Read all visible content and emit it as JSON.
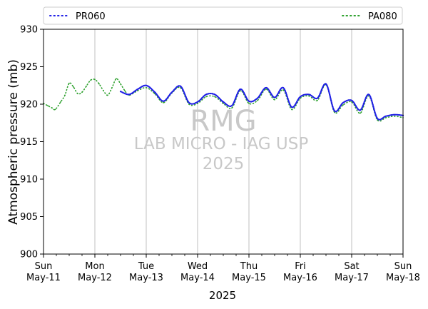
{
  "chart_data": {
    "type": "line",
    "xlabel": "2025",
    "ylabel": "Atmospheric pressure (mb)",
    "ylim": [
      900,
      930
    ],
    "yticks": [
      "900",
      "905",
      "910",
      "915",
      "920",
      "925",
      "930"
    ],
    "xlim_days": [
      "2025-05-11",
      "2025-05-18"
    ],
    "xticks": [
      {
        "day": "Sun",
        "date": "May-11"
      },
      {
        "day": "Mon",
        "date": "May-12"
      },
      {
        "day": "Tue",
        "date": "May-13"
      },
      {
        "day": "Wed",
        "date": "May-14"
      },
      {
        "day": "Thu",
        "date": "May-15"
      },
      {
        "day": "Fri",
        "date": "May-16"
      },
      {
        "day": "Sat",
        "date": "May-17"
      },
      {
        "day": "Sun",
        "date": "May-18"
      }
    ],
    "grid": "vertical-major",
    "legend": "top",
    "watermark": [
      "RMG",
      "LAB MICRO - IAG USP",
      "2025"
    ],
    "series": [
      {
        "name": "PR060",
        "color": "#1f1fe6",
        "style": "dotted",
        "points": [
          [
            "2025-05-12 12:00",
            921.7
          ],
          [
            "2025-05-12 16:00",
            921.3
          ],
          [
            "2025-05-12 20:00",
            922.0
          ],
          [
            "2025-05-13 00:00",
            922.5
          ],
          [
            "2025-05-13 04:00",
            921.6
          ],
          [
            "2025-05-13 08:00",
            920.4
          ],
          [
            "2025-05-13 12:00",
            921.6
          ],
          [
            "2025-05-13 16:00",
            922.4
          ],
          [
            "2025-05-13 20:00",
            920.2
          ],
          [
            "2025-05-14 00:00",
            920.3
          ],
          [
            "2025-05-14 04:00",
            921.3
          ],
          [
            "2025-05-14 08:00",
            921.3
          ],
          [
            "2025-05-14 12:00",
            920.3
          ],
          [
            "2025-05-14 16:00",
            919.8
          ],
          [
            "2025-05-14 20:00",
            922.0
          ],
          [
            "2025-05-15 00:00",
            920.4
          ],
          [
            "2025-05-15 04:00",
            920.8
          ],
          [
            "2025-05-15 08:00",
            922.2
          ],
          [
            "2025-05-15 12:00",
            920.9
          ],
          [
            "2025-05-15 16:00",
            922.2
          ],
          [
            "2025-05-15 20:00",
            919.6
          ],
          [
            "2025-05-16 00:00",
            921.0
          ],
          [
            "2025-05-16 04:00",
            921.3
          ],
          [
            "2025-05-16 08:00",
            920.8
          ],
          [
            "2025-05-16 12:00",
            922.7
          ],
          [
            "2025-05-16 16:00",
            919.1
          ],
          [
            "2025-05-16 20:00",
            920.2
          ],
          [
            "2025-05-17 00:00",
            920.5
          ],
          [
            "2025-05-17 04:00",
            919.2
          ],
          [
            "2025-05-17 08:00",
            921.3
          ],
          [
            "2025-05-17 12:00",
            918.1
          ],
          [
            "2025-05-17 16:00",
            918.4
          ],
          [
            "2025-05-17 20:00",
            918.6
          ],
          [
            "2025-05-18 00:00",
            918.5
          ]
        ]
      },
      {
        "name": "PA080",
        "color": "#2ca02c",
        "style": "dotted",
        "points": [
          [
            "2025-05-11 00:00",
            920.1
          ],
          [
            "2025-05-11 02:00",
            919.8
          ],
          [
            "2025-05-11 04:00",
            919.5
          ],
          [
            "2025-05-11 05:30",
            919.3
          ],
          [
            "2025-05-11 08:00",
            920.3
          ],
          [
            "2025-05-11 10:00",
            921.2
          ],
          [
            "2025-05-11 12:00",
            922.8
          ],
          [
            "2025-05-11 14:00",
            922.3
          ],
          [
            "2025-05-11 16:00",
            921.4
          ],
          [
            "2025-05-11 18:00",
            921.6
          ],
          [
            "2025-05-11 20:00",
            922.4
          ],
          [
            "2025-05-11 22:00",
            923.2
          ],
          [
            "2025-05-12 00:00",
            923.3
          ],
          [
            "2025-05-12 02:00",
            922.7
          ],
          [
            "2025-05-12 04:00",
            921.8
          ],
          [
            "2025-05-12 06:00",
            921.2
          ],
          [
            "2025-05-12 08:00",
            922.2
          ],
          [
            "2025-05-12 10:00",
            923.4
          ],
          [
            "2025-05-12 12:00",
            922.7
          ],
          [
            "2025-05-12 14:00",
            921.8
          ],
          [
            "2025-05-12 16:00",
            921.2
          ],
          [
            "2025-05-12 20:00",
            921.8
          ],
          [
            "2025-05-13 00:00",
            922.2
          ],
          [
            "2025-05-13 04:00",
            921.4
          ],
          [
            "2025-05-13 08:00",
            920.2
          ],
          [
            "2025-05-13 12:00",
            921.5
          ],
          [
            "2025-05-13 16:00",
            922.2
          ],
          [
            "2025-05-13 20:00",
            920.0
          ],
          [
            "2025-05-14 00:00",
            920.1
          ],
          [
            "2025-05-14 04:00",
            921.0
          ],
          [
            "2025-05-14 08:00",
            921.0
          ],
          [
            "2025-05-14 12:00",
            920.1
          ],
          [
            "2025-05-14 16:00",
            919.5
          ],
          [
            "2025-05-14 20:00",
            921.8
          ],
          [
            "2025-05-15 00:00",
            920.1
          ],
          [
            "2025-05-15 04:00",
            920.5
          ],
          [
            "2025-05-15 08:00",
            922.0
          ],
          [
            "2025-05-15 12:00",
            920.6
          ],
          [
            "2025-05-15 16:00",
            921.9
          ],
          [
            "2025-05-15 20:00",
            919.3
          ],
          [
            "2025-05-16 00:00",
            920.8
          ],
          [
            "2025-05-16 04:00",
            921.1
          ],
          [
            "2025-05-16 08:00",
            920.5
          ],
          [
            "2025-05-16 12:00",
            922.6
          ],
          [
            "2025-05-16 16:00",
            918.9
          ],
          [
            "2025-05-16 20:00",
            919.9
          ],
          [
            "2025-05-17 00:00",
            920.3
          ],
          [
            "2025-05-17 04:00",
            918.8
          ],
          [
            "2025-05-17 08:00",
            921.1
          ],
          [
            "2025-05-17 12:00",
            917.9
          ],
          [
            "2025-05-17 16:00",
            918.2
          ],
          [
            "2025-05-17 20:00",
            918.4
          ],
          [
            "2025-05-18 00:00",
            918.2
          ]
        ]
      }
    ]
  }
}
